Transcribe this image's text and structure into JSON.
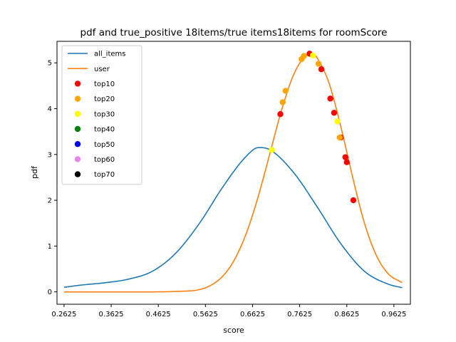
{
  "chart_data": {
    "type": "line",
    "title": "pdf and true_positive 18items/true items18items for roomScore",
    "xlabel": "score",
    "ylabel": "pdf",
    "xlim": [
      0.2475,
      0.9975
    ],
    "ylim": [
      -0.27,
      5.47
    ],
    "x_ticks": [
      "0.2625",
      "0.3625",
      "0.4625",
      "0.5625",
      "0.6625",
      "0.7625",
      "0.8625",
      "0.9625"
    ],
    "y_ticks": [
      "0",
      "1",
      "2",
      "3",
      "4",
      "5"
    ],
    "legend_position": "upper-left",
    "series": [
      {
        "name": "all_items",
        "kind": "line",
        "color": "#1f77b4",
        "x": [
          0.2625,
          0.3,
          0.35,
          0.4,
          0.45,
          0.5,
          0.55,
          0.6,
          0.65,
          0.675,
          0.7,
          0.75,
          0.8,
          0.85,
          0.9,
          0.95,
          0.98
        ],
        "y": [
          0.1,
          0.15,
          0.2,
          0.28,
          0.45,
          0.85,
          1.5,
          2.3,
          2.97,
          3.15,
          3.1,
          2.6,
          1.85,
          1.05,
          0.45,
          0.17,
          0.09
        ]
      },
      {
        "name": "user",
        "kind": "line",
        "color": "#ff7f0e",
        "x": [
          0.2625,
          0.45,
          0.5,
          0.55,
          0.575,
          0.6,
          0.625,
          0.65,
          0.675,
          0.7,
          0.725,
          0.75,
          0.775,
          0.79,
          0.8,
          0.825,
          0.85,
          0.875,
          0.9,
          0.925,
          0.95,
          0.98
        ],
        "y": [
          0.0,
          0.0,
          0.01,
          0.05,
          0.15,
          0.35,
          0.72,
          1.3,
          2.1,
          3.05,
          4.0,
          4.75,
          5.15,
          5.2,
          5.1,
          4.55,
          3.6,
          2.5,
          1.5,
          0.8,
          0.4,
          0.2
        ]
      },
      {
        "name": "top10",
        "kind": "scatter",
        "color": "#ff0000",
        "x": [
          0.7215,
          0.7835,
          0.8085,
          0.8275,
          0.8355,
          0.8495,
          0.8595,
          0.8625,
          0.8765
        ],
        "y": [
          3.88,
          5.2,
          4.86,
          4.22,
          3.91,
          3.37,
          2.94,
          2.83,
          2.0
        ]
      },
      {
        "name": "top20",
        "kind": "scatter",
        "color": "#ffa500",
        "x": [
          0.7265,
          0.7325,
          0.7665,
          0.7715,
          0.8025,
          0.8475
        ],
        "y": [
          4.14,
          4.39,
          5.08,
          5.15,
          4.98,
          3.37
        ]
      },
      {
        "name": "top30",
        "kind": "scatter",
        "color": "#ffff00",
        "x": [
          0.7035,
          0.7905,
          0.8425
        ],
        "y": [
          3.1,
          5.16,
          3.72
        ]
      },
      {
        "name": "top40",
        "kind": "scatter",
        "color": "#008000",
        "x": [],
        "y": []
      },
      {
        "name": "top50",
        "kind": "scatter",
        "color": "#0000ff",
        "x": [],
        "y": []
      },
      {
        "name": "top60",
        "kind": "scatter",
        "color": "#ee82ee",
        "x": [],
        "y": []
      },
      {
        "name": "top70",
        "kind": "scatter",
        "color": "#000000",
        "x": [],
        "y": []
      }
    ]
  }
}
